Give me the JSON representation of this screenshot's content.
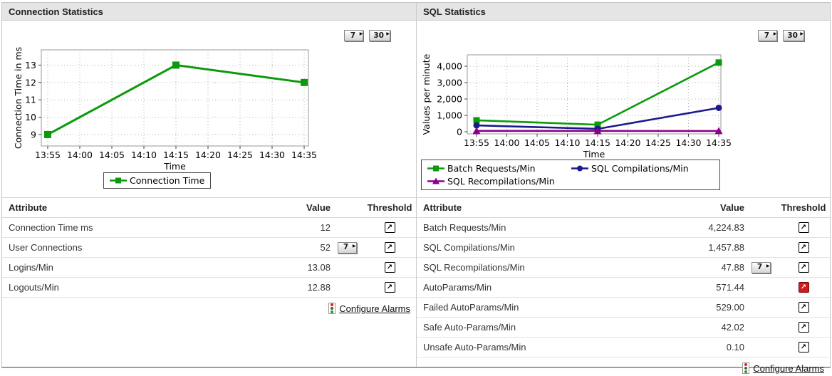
{
  "icons": {
    "threshold": "↗",
    "expand": "▶"
  },
  "colors": {
    "green": "#0a9a0a",
    "navy": "#1a1a8c",
    "purple": "#8c008c",
    "alarm_red": "#cc1c1c"
  },
  "chart_data": [
    {
      "type": "line",
      "title": "",
      "xlabel": "Time",
      "ylabel": "Connection Time in ms",
      "x_ticks": [
        "13:55",
        "14:00",
        "14:05",
        "14:10",
        "14:15",
        "14:20",
        "14:25",
        "14:30",
        "14:35"
      ],
      "y_ticks": [
        9,
        10,
        11,
        12,
        13
      ],
      "y_tick_labels": [
        "9",
        "10",
        "11",
        "12",
        "13"
      ],
      "ylim": [
        8.34,
        13.88
      ],
      "grid": true,
      "legend_position": "bottom",
      "series": [
        {
          "name": "Connection Time",
          "color": "#0a9a0a",
          "marker": "square",
          "x": [
            0,
            4,
            8
          ],
          "values": [
            9,
            13,
            12
          ]
        }
      ]
    },
    {
      "type": "line",
      "title": "",
      "xlabel": "Time",
      "ylabel": "Values per minute",
      "x_ticks": [
        "13:55",
        "14:00",
        "14:05",
        "14:10",
        "14:15",
        "14:20",
        "14:25",
        "14:30",
        "14:35"
      ],
      "y_ticks": [
        0,
        1000,
        2000,
        3000,
        4000
      ],
      "y_tick_labels": [
        "0",
        "1,000",
        "2,000",
        "3,000",
        "4,000"
      ],
      "ylim": [
        -130,
        4696
      ],
      "grid": true,
      "legend_position": "bottom",
      "series": [
        {
          "name": "Batch Requests/Min",
          "color": "#0a9a0a",
          "marker": "square",
          "x": [
            0,
            4,
            8
          ],
          "values": [
            700,
            430,
            4224.83
          ]
        },
        {
          "name": "SQL Compilations/Min",
          "color": "#1a1a8c",
          "marker": "circle",
          "x": [
            0,
            4,
            8
          ],
          "values": [
            390,
            175,
            1457.88
          ]
        },
        {
          "name": "SQL Recompilations/Min",
          "color": "#8c008c",
          "marker": "triangle",
          "x": [
            0,
            4,
            8
          ],
          "values": [
            50,
            50,
            47.88
          ]
        }
      ]
    }
  ],
  "panels": [
    {
      "title": "Connection Statistics",
      "range_buttons": [
        "7",
        "30"
      ],
      "table": {
        "headers": [
          "Attribute",
          "Value",
          "Threshold"
        ],
        "rows": [
          {
            "attribute": "Connection Time ms",
            "value": "12"
          },
          {
            "attribute": "User Connections",
            "value": "52",
            "button": "7"
          },
          {
            "attribute": "Logins/Min",
            "value": "13.08"
          },
          {
            "attribute": "Logouts/Min",
            "value": "12.88"
          }
        ],
        "footer_link": "Configure Alarms"
      }
    },
    {
      "title": "SQL Statistics",
      "range_buttons": [
        "7",
        "30"
      ],
      "table": {
        "headers": [
          "Attribute",
          "Value",
          "Threshold"
        ],
        "rows": [
          {
            "attribute": "Batch Requests/Min",
            "value": "4,224.83"
          },
          {
            "attribute": "SQL Compilations/Min",
            "value": "1,457.88"
          },
          {
            "attribute": "SQL Recompilations/Min",
            "value": "47.88",
            "button": "7"
          },
          {
            "attribute": "AutoParams/Min",
            "value": "571.44",
            "alarm": true
          },
          {
            "attribute": "Failed AutoParams/Min",
            "value": "529.00"
          },
          {
            "attribute": "Safe Auto-Params/Min",
            "value": "42.02"
          },
          {
            "attribute": "Unsafe Auto-Params/Min",
            "value": "0.10"
          }
        ],
        "footer_link": "Configure Alarms"
      }
    }
  ]
}
